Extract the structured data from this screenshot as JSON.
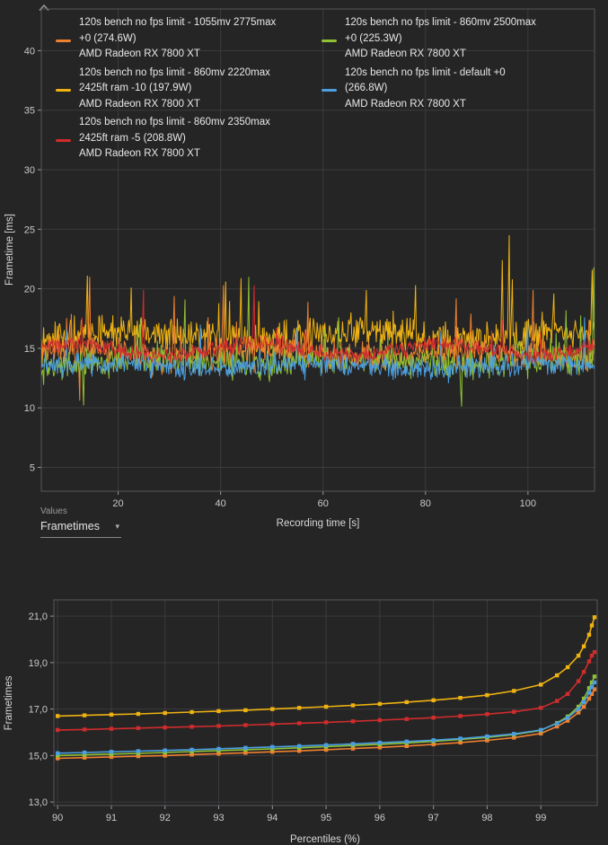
{
  "ui": {
    "values_caption": "Values",
    "values_selected": "Frametimes"
  },
  "icons": {
    "collapse_chart": "chevron-up-icon",
    "values_dropdown": "chevron-down-icon"
  },
  "colors": {
    "background": "#252526",
    "gridline": "#3b3b3e",
    "plot_border": "#56565a",
    "tick_text": "#c9c9c9",
    "axis_text": "#d8d8d8",
    "legend_text": "#e8e8e8",
    "muted_text": "#9a9a9a"
  },
  "chart_data": [
    {
      "type": "line",
      "title": "",
      "ylabel": "Frametime [ms]",
      "xlabel": "Recording time [s]",
      "x_range": [
        5,
        113
      ],
      "y_range": [
        3,
        43.5
      ],
      "x_ticks": [
        20,
        40,
        60,
        80,
        100
      ],
      "y_ticks": [
        5,
        10,
        15,
        20,
        25,
        30,
        35,
        40
      ],
      "grid": true,
      "legend_position": "top-left, two columns",
      "sample_step": 0.15,
      "series": [
        {
          "name": "120s bench no fps limit - 1055mv 2775max +0 (274.6W)",
          "gpu": "AMD Radeon RX 7800 XT",
          "color": "#ee8130",
          "z": 2,
          "legend": {
            "column": 1,
            "line1": "120s bench no fps limit - 1055mv 2775max",
            "line2": "+0 (274.6W)",
            "line3": "AMD Radeon RX 7800 XT"
          },
          "approx_ms": {
            "mean": 14.6,
            "min": 11.5,
            "max": 21.0
          },
          "gen": {
            "seed": 7,
            "mean": 14.6,
            "amp": 1.55,
            "wave_amp": 0.3,
            "wave_period": 40,
            "wave_phase": 0,
            "spikes": [
              [
                12.5,
                10.6
              ],
              [
                14.5,
                21.0
              ],
              [
                31,
                19.4
              ],
              [
                40.5,
                20.3
              ],
              [
                57,
                18.9
              ],
              [
                86,
                19.2
              ],
              [
                101,
                19.9
              ]
            ]
          }
        },
        {
          "name": "120s bench no fps limit - 860mv 2220max 2425ft ram -10 (197.9W)",
          "gpu": "AMD Radeon RX 7800 XT",
          "color": "#eeb211",
          "z": 1,
          "legend": {
            "column": 1,
            "line1": "120s bench no fps limit - 860mv 2220max",
            "line2": "2425ft ram -10 (197.9W)",
            "line3": "AMD Radeon RX 7800 XT"
          },
          "approx_ms": {
            "mean": 16.1,
            "min": 12.5,
            "max": 24.5
          },
          "gen": {
            "seed": 13,
            "mean": 16.1,
            "amp": 1.65,
            "wave_amp": 0.35,
            "wave_period": 45,
            "wave_phase": 10,
            "spikes": [
              [
                14,
                21.1
              ],
              [
                22.5,
                20.1
              ],
              [
                41,
                20.6
              ],
              [
                44,
                20.9
              ],
              [
                68.5,
                19.9
              ],
              [
                78,
                20.3
              ],
              [
                95,
                22.4
              ],
              [
                96.3,
                24.5
              ],
              [
                97,
                20.8
              ],
              [
                105,
                19.6
              ],
              [
                112.5,
                21.6
              ]
            ]
          }
        },
        {
          "name": "120s bench no fps limit - 860mv 2350max 2425ft ram -5 (208.8W)",
          "gpu": "AMD Radeon RX 7800 XT",
          "color": "#d02c2c",
          "z": 5,
          "legend": {
            "column": 1,
            "line1": "120s bench no fps limit - 860mv 2350max",
            "line2": "2425ft ram -5 (208.8W)",
            "line3": "AMD Radeon RX 7800 XT"
          },
          "approx_ms": {
            "mean": 14.9,
            "min": 13.2,
            "max": 20.3
          },
          "gen": {
            "seed": 21,
            "mean": 14.9,
            "amp": 0.8,
            "wave_amp": 0.5,
            "wave_period": 36,
            "wave_phase": 2,
            "spikes": [
              [
                13,
                17.6
              ],
              [
                25,
                19.9
              ],
              [
                46.5,
                20.3
              ],
              [
                95,
                17.4
              ]
            ]
          }
        },
        {
          "name": "120s bench no fps limit - 860mv 2500max +0 (225.3W)",
          "gpu": "AMD Radeon RX 7800 XT",
          "color": "#8fc132",
          "z": 3,
          "legend": {
            "column": 2,
            "line1": "120s bench no fps limit - 860mv 2500max",
            "line2": "+0 (225.3W)",
            "line3": "AMD Radeon RX 7800 XT"
          },
          "approx_ms": {
            "mean": 13.9,
            "min": 10.1,
            "max": 21.8
          },
          "gen": {
            "seed": 29,
            "mean": 13.9,
            "amp": 1.5,
            "wave_amp": 0.3,
            "wave_period": 38,
            "wave_phase": 18,
            "spikes": [
              [
                13.2,
                10.2
              ],
              [
                33,
                19.1
              ],
              [
                45.5,
                21.0
              ],
              [
                63,
                17.6
              ],
              [
                87,
                10.1
              ],
              [
                107.5,
                18.2
              ],
              [
                112.8,
                21.8
              ]
            ]
          }
        },
        {
          "name": "120s bench no fps limit - default +0 (266.8W)",
          "gpu": "AMD Radeon RX 7800 XT",
          "color": "#4b9fe0",
          "z": 4,
          "legend": {
            "column": 2,
            "line1": "120s bench no fps limit - default +0",
            "line2": "(266.8W)",
            "line3": "AMD Radeon RX 7800 XT"
          },
          "approx_ms": {
            "mean": 13.5,
            "min": 12.0,
            "max": 17.6
          },
          "gen": {
            "seed": 37,
            "mean": 13.5,
            "amp": 1.15,
            "wave_amp": 0.25,
            "wave_period": 42,
            "wave_phase": 6,
            "spikes": [
              [
                10,
                16.6
              ],
              [
                36,
                17.0
              ],
              [
                55,
                16.8
              ],
              [
                83,
                16.4
              ],
              [
                100,
                17.2
              ],
              [
                111,
                17.6
              ]
            ]
          }
        }
      ]
    },
    {
      "type": "line",
      "title": "",
      "ylabel": "Frametimes",
      "xlabel": "Percentiles (%)",
      "x_range": [
        89.93,
        100.05
      ],
      "y_range": [
        12.85,
        21.7
      ],
      "x_ticks": [
        90,
        91,
        92,
        93,
        94,
        95,
        96,
        97,
        98,
        99
      ],
      "y_tick_values": [
        13,
        15,
        17,
        19,
        21
      ],
      "y_tick_labels": [
        "13,0",
        "15,0",
        "17,0",
        "19,0",
        "21,0"
      ],
      "grid": true,
      "marker": "square",
      "x": [
        90,
        90.5,
        91,
        91.5,
        92,
        92.5,
        93,
        93.5,
        94,
        94.5,
        95,
        95.5,
        96,
        96.5,
        97,
        97.5,
        98,
        98.5,
        99,
        99.3,
        99.5,
        99.7,
        99.8,
        99.9,
        99.95,
        100
      ],
      "series": [
        {
          "name": "1055mv 2775max +0 (274.6W)",
          "color": "#ee8130",
          "values": [
            14.88,
            14.91,
            14.94,
            14.97,
            15.0,
            15.04,
            15.08,
            15.12,
            15.16,
            15.2,
            15.25,
            15.3,
            15.35,
            15.41,
            15.48,
            15.56,
            15.65,
            15.77,
            15.95,
            16.25,
            16.5,
            16.85,
            17.1,
            17.45,
            17.65,
            17.85
          ]
        },
        {
          "name": "860mv 2500max +0 (225.3W)",
          "color": "#8fc132",
          "values": [
            15.0,
            15.03,
            15.06,
            15.09,
            15.13,
            15.17,
            15.21,
            15.25,
            15.29,
            15.33,
            15.38,
            15.43,
            15.48,
            15.54,
            15.61,
            15.69,
            15.78,
            15.9,
            16.08,
            16.4,
            16.68,
            17.1,
            17.45,
            17.9,
            18.15,
            18.4
          ]
        },
        {
          "name": "default +0 (266.8W)",
          "color": "#4b9fe0",
          "values": [
            15.1,
            15.13,
            15.16,
            15.19,
            15.22,
            15.25,
            15.29,
            15.33,
            15.37,
            15.41,
            15.45,
            15.5,
            15.55,
            15.6,
            15.66,
            15.73,
            15.82,
            15.93,
            16.1,
            16.38,
            16.62,
            17.0,
            17.3,
            17.7,
            17.95,
            18.15
          ]
        },
        {
          "name": "860mv 2350max 2425ft ram -5 (208.8W)",
          "color": "#d02c2c",
          "values": [
            16.1,
            16.12,
            16.15,
            16.18,
            16.21,
            16.24,
            16.27,
            16.31,
            16.35,
            16.39,
            16.43,
            16.47,
            16.52,
            16.57,
            16.63,
            16.7,
            16.78,
            16.88,
            17.05,
            17.35,
            17.65,
            18.2,
            18.6,
            19.05,
            19.3,
            19.45
          ]
        },
        {
          "name": "860mv 2220max 2425ft ram -10 (197.9W)",
          "color": "#eeb211",
          "values": [
            16.7,
            16.73,
            16.76,
            16.79,
            16.83,
            16.87,
            16.91,
            16.95,
            17.0,
            17.05,
            17.1,
            17.16,
            17.22,
            17.3,
            17.38,
            17.48,
            17.6,
            17.78,
            18.05,
            18.45,
            18.8,
            19.3,
            19.7,
            20.2,
            20.6,
            20.95
          ]
        }
      ]
    }
  ]
}
